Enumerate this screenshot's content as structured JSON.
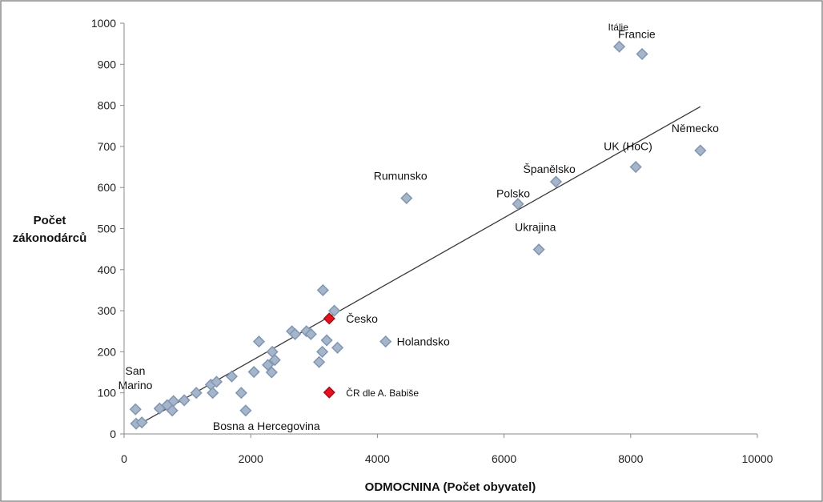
{
  "chart_data": {
    "type": "scatter",
    "title": "",
    "xlabel": "ODMOCNINA (Počet obyvatel)",
    "ylabel_lines": [
      "Počet",
      "zákonodárců"
    ],
    "xlim": [
      0,
      10000
    ],
    "ylim": [
      0,
      1000
    ],
    "x_ticks": [
      0,
      2000,
      4000,
      6000,
      8000,
      10000
    ],
    "y_ticks": [
      0,
      100,
      200,
      300,
      400,
      500,
      600,
      700,
      800,
      900,
      1000
    ],
    "grid": false,
    "legend": "none",
    "colors": {
      "default_fill": "#a7b5c9",
      "default_stroke": "#7f96b4",
      "highlight_fill": "#e8101e",
      "highlight_stroke": "#a30d16",
      "trendline": "#3a3a3a"
    },
    "trendline": {
      "x": [
        200,
        9100
      ],
      "y": [
        20,
        797
      ]
    },
    "points": [
      {
        "x": 7820,
        "y": 943,
        "label": "Itálie"
      },
      {
        "x": 8180,
        "y": 925,
        "label": "Francie"
      },
      {
        "x": 9100,
        "y": 690,
        "label": "Německo"
      },
      {
        "x": 8080,
        "y": 650,
        "label": "UK (HoC)"
      },
      {
        "x": 6820,
        "y": 614,
        "label": "Španělsko"
      },
      {
        "x": 6220,
        "y": 560,
        "label": "Polsko"
      },
      {
        "x": 4460,
        "y": 574,
        "label": "Rumunsko"
      },
      {
        "x": 6550,
        "y": 449,
        "label": "Ukrajina"
      },
      {
        "x": 4130,
        "y": 225,
        "label": "Holandsko"
      },
      {
        "x": 3240,
        "y": 281,
        "label": "Česko",
        "highlight": true
      },
      {
        "x": 3240,
        "y": 101,
        "label": "ČR dle A. Babiše",
        "highlight": true
      },
      {
        "x": 1920,
        "y": 57,
        "label": "Bosna a Hercegovina"
      },
      {
        "x": 180,
        "y": 60,
        "label": "San Marino"
      },
      {
        "x": 190,
        "y": 25,
        "label": ""
      },
      {
        "x": 280,
        "y": 28,
        "label": ""
      },
      {
        "x": 560,
        "y": 62,
        "label": ""
      },
      {
        "x": 680,
        "y": 70,
        "label": ""
      },
      {
        "x": 760,
        "y": 57,
        "label": ""
      },
      {
        "x": 780,
        "y": 80,
        "label": ""
      },
      {
        "x": 950,
        "y": 82,
        "label": ""
      },
      {
        "x": 1140,
        "y": 100,
        "label": ""
      },
      {
        "x": 1370,
        "y": 120,
        "label": ""
      },
      {
        "x": 1400,
        "y": 100,
        "label": ""
      },
      {
        "x": 1460,
        "y": 127,
        "label": ""
      },
      {
        "x": 1700,
        "y": 140,
        "label": ""
      },
      {
        "x": 1850,
        "y": 100,
        "label": ""
      },
      {
        "x": 2050,
        "y": 151,
        "label": ""
      },
      {
        "x": 2130,
        "y": 225,
        "label": ""
      },
      {
        "x": 2270,
        "y": 168,
        "label": ""
      },
      {
        "x": 2330,
        "y": 150,
        "label": ""
      },
      {
        "x": 2340,
        "y": 200,
        "label": ""
      },
      {
        "x": 2380,
        "y": 180,
        "label": ""
      },
      {
        "x": 2650,
        "y": 250,
        "label": ""
      },
      {
        "x": 2700,
        "y": 243,
        "label": ""
      },
      {
        "x": 2880,
        "y": 250,
        "label": ""
      },
      {
        "x": 2950,
        "y": 243,
        "label": ""
      },
      {
        "x": 3080,
        "y": 175,
        "label": ""
      },
      {
        "x": 3130,
        "y": 200,
        "label": ""
      },
      {
        "x": 3140,
        "y": 350,
        "label": ""
      },
      {
        "x": 3200,
        "y": 228,
        "label": ""
      },
      {
        "x": 3320,
        "y": 300,
        "label": ""
      },
      {
        "x": 3370,
        "y": 210,
        "label": ""
      }
    ]
  }
}
